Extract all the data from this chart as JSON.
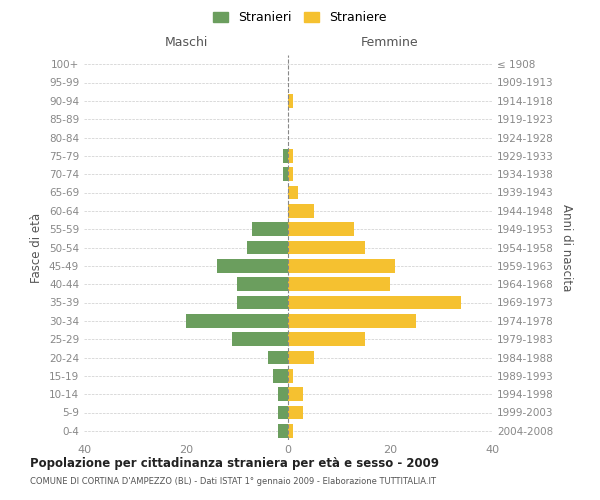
{
  "age_groups": [
    "0-4",
    "5-9",
    "10-14",
    "15-19",
    "20-24",
    "25-29",
    "30-34",
    "35-39",
    "40-44",
    "45-49",
    "50-54",
    "55-59",
    "60-64",
    "65-69",
    "70-74",
    "75-79",
    "80-84",
    "85-89",
    "90-94",
    "95-99",
    "100+"
  ],
  "birth_years": [
    "2004-2008",
    "1999-2003",
    "1994-1998",
    "1989-1993",
    "1984-1988",
    "1979-1983",
    "1974-1978",
    "1969-1973",
    "1964-1968",
    "1959-1963",
    "1954-1958",
    "1949-1953",
    "1944-1948",
    "1939-1943",
    "1934-1938",
    "1929-1933",
    "1924-1928",
    "1919-1923",
    "1914-1918",
    "1909-1913",
    "≤ 1908"
  ],
  "maschi": [
    2,
    2,
    2,
    3,
    4,
    11,
    20,
    10,
    10,
    14,
    8,
    7,
    0,
    0,
    1,
    1,
    0,
    0,
    0,
    0,
    0
  ],
  "femmine": [
    1,
    3,
    3,
    1,
    5,
    15,
    25,
    34,
    20,
    21,
    15,
    13,
    5,
    2,
    1,
    1,
    0,
    0,
    1,
    0,
    0
  ],
  "color_maschi": "#6b9e5e",
  "color_femmine": "#f5c130",
  "title": "Popolazione per cittadinanza straniera per età e sesso - 2009",
  "subtitle": "COMUNE DI CORTINA D'AMPEZZO (BL) - Dati ISTAT 1° gennaio 2009 - Elaborazione TUTTITALIA.IT",
  "left_label": "Maschi",
  "right_label": "Femmine",
  "left_axis_label": "Fasce di età",
  "right_axis_label": "Anni di nascita",
  "legend_maschi": "Stranieri",
  "legend_femmine": "Straniere",
  "xlim": 40,
  "background_color": "#ffffff",
  "grid_color": "#cccccc",
  "tick_color": "#888888",
  "dashed_line_color": "#888888"
}
